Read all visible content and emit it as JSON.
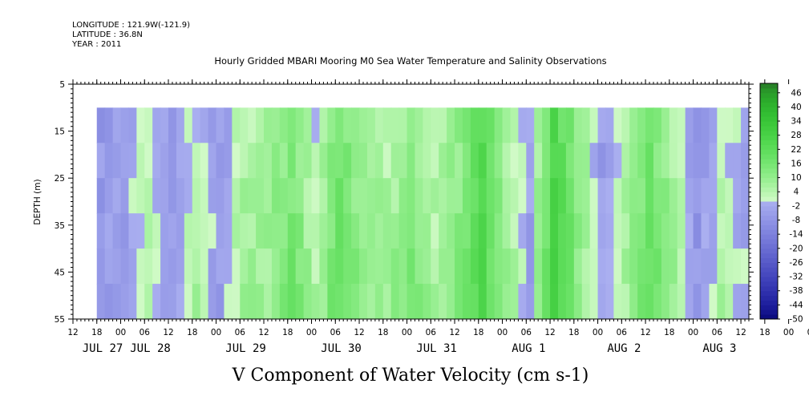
{
  "header": {
    "longitude": "LONGITUDE : 121.9W(-121.9)",
    "latitude": "LATITUDE : 36.8N",
    "year": "YEAR : 2011"
  },
  "chart_data": {
    "type": "heatmap",
    "title": "Hourly Gridded MBARI Mooring M0 Sea Water Temperature and Salinity Observations",
    "xlabel": "V Component of Water Velocity (cm s-1)",
    "ylabel": "DEPTH (m)",
    "ylim": [
      5,
      55
    ],
    "y_inverted": true,
    "y_ticks": [
      5,
      15,
      25,
      35,
      45,
      55
    ],
    "x_range_hours": [
      "JUL 27 12:00",
      "AUG 3 14:00"
    ],
    "x_hour_ticks": [
      "12",
      "18",
      "00",
      "06",
      "12",
      "18",
      "00",
      "06",
      "12",
      "18",
      "00",
      "06",
      "12",
      "18",
      "00",
      "06",
      "12",
      "18",
      "00",
      "06",
      "12",
      "18",
      "00",
      "06",
      "12",
      "18",
      "00",
      "06",
      "12",
      "18",
      "00",
      "06",
      "12"
    ],
    "x_day_labels": [
      "JUL 27",
      "JUL 28",
      "JUL 29",
      "JUL 30",
      "JUL 31",
      "AUG  1",
      "AUG  2",
      "AUG  3"
    ],
    "data_start": "JUL 27 18:00",
    "data_depth_range": [
      10,
      55
    ],
    "colorbar": {
      "min": -50,
      "max": 50,
      "step": 6,
      "labels": [
        46,
        40,
        34,
        28,
        22,
        16,
        10,
        4,
        -2,
        -8,
        -14,
        -20,
        -26,
        -32,
        -38,
        -44,
        -50
      ]
    },
    "bands": [
      {
        "time": "JUL 27 18:00",
        "v": -6
      },
      {
        "time": "JUL 28 00:00",
        "v": -5
      },
      {
        "time": "JUL 28 06:00",
        "v": 2
      },
      {
        "time": "JUL 28 12:00",
        "v": -4
      },
      {
        "time": "JUL 28 18:00",
        "v": 3
      },
      {
        "time": "JUL 29 00:00",
        "v": -6
      },
      {
        "time": "JUL 29 06:00",
        "v": 5
      },
      {
        "time": "JUL 29 12:00",
        "v": 6
      },
      {
        "time": "JUL 29 18:00",
        "v": 14
      },
      {
        "time": "JUL 30 00:00",
        "v": 2
      },
      {
        "time": "JUL 30 06:00",
        "v": 16
      },
      {
        "time": "JUL 30 12:00",
        "v": 8
      },
      {
        "time": "JUL 30 18:00",
        "v": 4
      },
      {
        "time": "JUL 31 00:00",
        "v": 12
      },
      {
        "time": "JUL 31 06:00",
        "v": 3
      },
      {
        "time": "JUL 31 12:00",
        "v": 10
      },
      {
        "time": "JUL 31 18:00",
        "v": 22
      },
      {
        "time": "AUG 1 00:00",
        "v": 6
      },
      {
        "time": "AUG 1 06:00",
        "v": -4
      },
      {
        "time": "AUG 1 12:00",
        "v": 26
      },
      {
        "time": "AUG 1 18:00",
        "v": 10
      },
      {
        "time": "AUG 2 00:00",
        "v": -5
      },
      {
        "time": "AUG 2 06:00",
        "v": 4
      },
      {
        "time": "AUG 2 12:00",
        "v": 16
      },
      {
        "time": "AUG 2 18:00",
        "v": 5
      },
      {
        "time": "AUG 3 00:00",
        "v": -7
      },
      {
        "time": "AUG 3 06:00",
        "v": 2
      },
      {
        "time": "AUG 3 12:00",
        "v": -3
      }
    ]
  }
}
